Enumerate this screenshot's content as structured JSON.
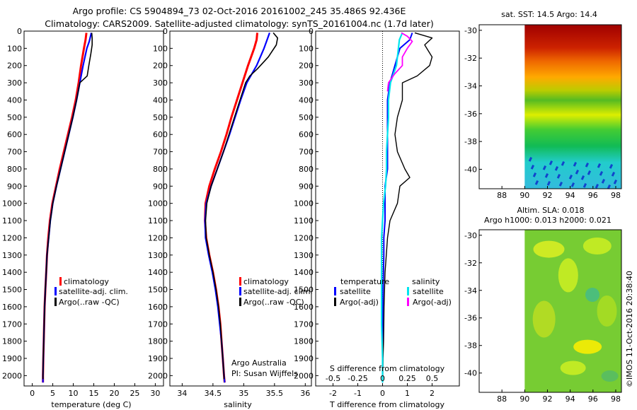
{
  "title": {
    "line1": "Argo profile: CS 5904894_73 02-Oct-2016 20161002_245 35.486S 92.436E",
    "line2": "Climatology: CARS2009. Satellite-adjusted climatology: synTS_20161004.nc (1.7d later)"
  },
  "colors": {
    "clim": "#ff0000",
    "sat": "#0000ff",
    "argo": "#000000",
    "sat_s": "#00e5ee",
    "argo_s": "#ff00ff"
  },
  "depth_ticks": [
    0,
    100,
    200,
    300,
    400,
    500,
    600,
    700,
    800,
    900,
    1000,
    1100,
    1200,
    1300,
    1400,
    1500,
    1600,
    1700,
    1800,
    1900,
    2000
  ],
  "chart_data": [
    {
      "type": "line",
      "id": "temperature",
      "xlabel": "temperature (deg C)",
      "ylabel": "",
      "xlim": [
        -2,
        32
      ],
      "ylim": [
        2060,
        0
      ],
      "xticks": [
        0,
        5,
        10,
        15,
        20,
        25,
        30
      ],
      "legend": [
        "climatology",
        "satellite-adj. clim.",
        "Argo(..raw -QC)"
      ],
      "series": [
        {
          "name": "climatology",
          "depth": [
            10,
            50,
            100,
            200,
            300,
            400,
            500,
            600,
            700,
            800,
            900,
            1000,
            1100,
            1200,
            1300,
            1400,
            1500,
            1600,
            1700,
            1800,
            1900,
            2000,
            2040
          ],
          "values": [
            13.2,
            13.0,
            12.6,
            11.9,
            11.3,
            10.6,
            9.7,
            8.7,
            7.7,
            6.7,
            5.8,
            4.9,
            4.3,
            3.9,
            3.6,
            3.4,
            3.2,
            3.0,
            2.9,
            2.8,
            2.7,
            2.6,
            2.6
          ]
        },
        {
          "name": "satellite-adj. clim.",
          "depth": [
            10,
            30,
            60,
            100,
            200,
            300,
            400,
            500,
            600,
            700,
            800,
            900,
            1000,
            1100,
            1200,
            1300,
            1400,
            1500,
            1600,
            1700,
            1800,
            1900,
            2000,
            2040
          ],
          "values": [
            14.4,
            14.2,
            13.9,
            13.3,
            12.4,
            11.6,
            10.8,
            9.9,
            8.9,
            7.9,
            6.9,
            5.9,
            5.0,
            4.4,
            4.0,
            3.6,
            3.4,
            3.2,
            3.0,
            2.9,
            2.8,
            2.7,
            2.6,
            2.6
          ]
        },
        {
          "name": "Argo(..raw -QC)",
          "depth": [
            10,
            40,
            80,
            130,
            200,
            260,
            300,
            400,
            500,
            600,
            700,
            800,
            900,
            1000,
            1100,
            1200,
            1300,
            1400,
            1500,
            1600,
            1700,
            1800,
            1900,
            2000,
            2020
          ],
          "values": [
            14.5,
            14.6,
            14.6,
            14.3,
            13.8,
            13.4,
            11.6,
            10.8,
            9.9,
            8.9,
            7.9,
            6.9,
            5.9,
            5.0,
            4.4,
            4.0,
            3.6,
            3.4,
            3.2,
            3.0,
            2.9,
            2.8,
            2.7,
            2.6,
            2.6
          ]
        }
      ]
    },
    {
      "type": "line",
      "id": "salinity",
      "xlabel": "salinity",
      "xlim": [
        33.8,
        36.1
      ],
      "ylim": [
        2060,
        0
      ],
      "xticks": [
        34,
        34.5,
        35,
        35.5,
        36
      ],
      "xticklabels": [
        "34",
        "34.5",
        "35",
        "35.5",
        "36"
      ],
      "legend": [
        "climatology",
        "satellite-adj. clim.",
        "Argo(..raw -QC)"
      ],
      "note_line1": "Argo Australia",
      "note_line2": "PI: Susan Wijffels",
      "series": [
        {
          "name": "climatology",
          "depth": [
            10,
            50,
            100,
            200,
            300,
            400,
            500,
            600,
            700,
            800,
            900,
            1000,
            1100,
            1200,
            1300,
            1400,
            1500,
            1600,
            1700,
            1800,
            1900,
            2000,
            2040
          ],
          "values": [
            35.22,
            35.21,
            35.17,
            35.07,
            34.98,
            34.89,
            34.8,
            34.72,
            34.63,
            34.53,
            34.44,
            34.38,
            34.37,
            34.39,
            34.44,
            34.5,
            34.55,
            34.59,
            34.62,
            34.64,
            34.66,
            34.68,
            34.69
          ]
        },
        {
          "name": "satellite-adj. clim.",
          "depth": [
            10,
            50,
            100,
            200,
            300,
            400,
            500,
            600,
            700,
            800,
            900,
            1000,
            1100,
            1200,
            1300,
            1400,
            1500,
            1600,
            1700,
            1800,
            1900,
            2000,
            2040
          ],
          "values": [
            35.42,
            35.38,
            35.33,
            35.21,
            35.05,
            34.95,
            34.86,
            34.77,
            34.67,
            34.57,
            34.47,
            34.39,
            34.37,
            34.38,
            34.43,
            34.49,
            34.54,
            34.58,
            34.61,
            34.64,
            34.66,
            34.68,
            34.69
          ]
        },
        {
          "name": "Argo(..raw -QC)",
          "depth": [
            10,
            40,
            80,
            150,
            220,
            260,
            300,
            400,
            500,
            600,
            700,
            800,
            900,
            1000,
            1100,
            1200,
            1300,
            1400,
            1500,
            1600,
            1700,
            1800,
            1900,
            2000,
            2020
          ],
          "values": [
            35.48,
            35.55,
            35.53,
            35.4,
            35.22,
            35.1,
            35.03,
            34.94,
            34.85,
            34.76,
            34.67,
            34.57,
            34.47,
            34.4,
            34.38,
            34.39,
            34.44,
            34.5,
            34.55,
            34.59,
            34.62,
            34.64,
            34.66,
            34.68,
            34.68
          ]
        }
      ]
    },
    {
      "type": "line",
      "id": "difference",
      "xlabel": "T difference from climatology",
      "xlabel_top": "S difference from climatology",
      "xlim": [
        -2.7,
        3.1
      ],
      "ylim": [
        2060,
        0
      ],
      "xticks": [
        -2,
        -1,
        0,
        1,
        2
      ],
      "s_ticklabels": [
        "-0.5",
        "-0.25",
        "0",
        "0.25",
        "0.5"
      ],
      "legend_temperature_title": "temperature",
      "legend_salinity_title": "salinity",
      "legend": [
        "satellite",
        "Argo(-adj)",
        "satellite",
        "Argo(-adj)"
      ],
      "series": [
        {
          "name": "T satellite",
          "depth": [
            10,
            50,
            100,
            200,
            300,
            400,
            500,
            600,
            700,
            800,
            900,
            1000,
            1100,
            1200,
            1300,
            1500,
            1700,
            1900,
            2040
          ],
          "values": [
            1.2,
            1.1,
            0.7,
            0.5,
            0.3,
            0.2,
            0.2,
            0.2,
            0.2,
            0.2,
            0.1,
            0.1,
            0.1,
            0.05,
            0.05,
            0.02,
            0.01,
            0.0,
            0.0
          ]
        },
        {
          "name": "T Argo(-adj)",
          "depth": [
            10,
            40,
            80,
            150,
            200,
            260,
            300,
            400,
            500,
            600,
            700,
            800,
            850,
            900,
            1000,
            1100,
            1200,
            1300,
            1400,
            1500,
            1600,
            1700,
            1800,
            1900,
            2000,
            2020
          ],
          "values": [
            1.3,
            2.0,
            1.7,
            2.0,
            1.9,
            1.4,
            0.8,
            0.8,
            0.6,
            0.5,
            0.6,
            0.9,
            1.1,
            0.7,
            0.6,
            0.3,
            0.2,
            0.15,
            0.1,
            0.08,
            0.06,
            0.05,
            0.04,
            0.02,
            0.01,
            0.01
          ]
        },
        {
          "name": "S satellite",
          "depth": [
            10,
            50,
            100,
            200,
            300,
            400,
            500,
            600,
            700,
            800,
            900,
            1000,
            1100,
            1200,
            1300,
            1500,
            1700,
            1900,
            2040
          ],
          "values": [
            0.2,
            0.17,
            0.16,
            0.14,
            0.08,
            0.06,
            0.06,
            0.05,
            0.04,
            0.04,
            0.03,
            0.01,
            0.0,
            -0.01,
            -0.01,
            -0.01,
            -0.01,
            0.0,
            0.0
          ]
        },
        {
          "name": "S Argo(-adj)",
          "depth": [
            10,
            30,
            60,
            100,
            150,
            200,
            250,
            300,
            350
          ],
          "values": [
            0.19,
            0.25,
            0.3,
            0.25,
            0.2,
            0.2,
            0.12,
            0.06,
            0.05
          ]
        }
      ]
    },
    {
      "type": "heatmap",
      "id": "sst_map",
      "title": "sat. SST: 14.5 Argo: 14.4",
      "xlim": [
        86,
        98.5
      ],
      "ylim": [
        -41.4,
        -29.6
      ],
      "xticks": [
        88,
        90,
        92,
        94,
        96,
        98
      ],
      "yticks": [
        -30,
        -32,
        -34,
        -36,
        -38,
        -40
      ],
      "data_x_start": 90
    },
    {
      "type": "heatmap",
      "id": "sla_map",
      "title_line1": "Altim. SLA: 0.018",
      "title_line2": "Argo h1000: 0.013 h2000: 0.021",
      "xlim": [
        86,
        98.5
      ],
      "ylim": [
        -41.4,
        -29.6
      ],
      "xticks": [
        88,
        90,
        92,
        94,
        96,
        98
      ],
      "yticks": [
        -30,
        -32,
        -34,
        -36,
        -38,
        -40
      ],
      "data_x_start": 90
    }
  ],
  "credit": "©IMOS 11-Oct-2016 20:38:40"
}
